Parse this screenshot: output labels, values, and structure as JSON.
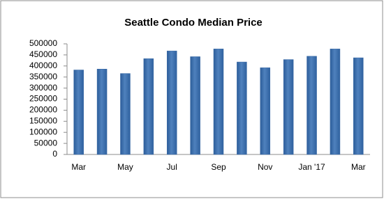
{
  "chart_data": {
    "type": "bar",
    "title": "Seattle Condo Median Price",
    "categories": [
      "Mar",
      null,
      "May",
      null,
      "Jul",
      null,
      "Sep",
      null,
      "Nov",
      null,
      "Jan '17",
      null,
      "Mar"
    ],
    "values": [
      382000,
      386000,
      366000,
      433000,
      468000,
      442000,
      477000,
      418000,
      392000,
      429000,
      444000,
      477000,
      437000
    ],
    "color": "#4f81bd",
    "ylim": [
      0,
      500000
    ],
    "yticks": [
      0,
      50000,
      100000,
      150000,
      200000,
      250000,
      300000,
      350000,
      400000,
      450000,
      500000
    ],
    "grid": false
  }
}
